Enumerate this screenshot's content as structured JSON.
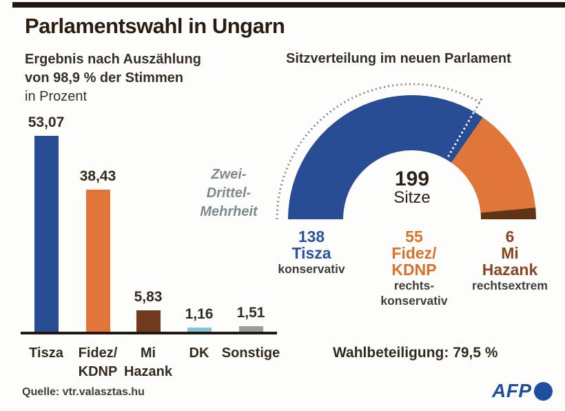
{
  "header": {
    "title": "Parlamentswahl in Ungarn"
  },
  "colors": {
    "tisza_blue": "#294d94",
    "fidez_orange": "#e0763a",
    "mi_hazank_brown_bar": "#6f3a1d",
    "mi_hazank_brown_donut": "#5f3316",
    "dk_lightblue": "#85c2dc",
    "sonstige_gray": "#9d9d99",
    "axis_black": "#231712",
    "annotation_gray": "#7e898d",
    "afp_blue": "#1e4f9c",
    "tisza_text": "#2c51a2",
    "fidez_text": "#d9702c",
    "mi_hazank_text": "#8b4520"
  },
  "chart_data": [
    {
      "type": "bar",
      "title_lines": [
        "Ergebnis nach Auszählung",
        "von 98,9 % der Stimmen",
        "in Prozent"
      ],
      "categories": [
        "Tisza",
        "Fidez/ KDNP",
        "Mi Hazank",
        "DK",
        "Sonstige"
      ],
      "category_lines": [
        [
          "Tisza"
        ],
        [
          "Fidez/",
          "KDNP"
        ],
        [
          "Mi",
          "Hazank"
        ],
        [
          "DK"
        ],
        [
          "Sonstige"
        ]
      ],
      "values": [
        53.07,
        38.43,
        5.83,
        1.16,
        1.51
      ],
      "value_labels": [
        "53,07",
        "38,43",
        "5,83",
        "1,16",
        "1,51"
      ],
      "bar_colors": [
        "#294d94",
        "#e0763a",
        "#6f3a1d",
        "#85c2dc",
        "#9d9d99"
      ],
      "ylabel": "Prozent",
      "ylim": [
        0,
        55
      ],
      "grid": false
    },
    {
      "type": "pie",
      "variant": "half-donut",
      "title": "Sitzverteilung im neuen Parlament",
      "center_label": {
        "value": "199",
        "unit": "Sitze"
      },
      "total_seats": 199,
      "segments": [
        {
          "name": "Tisza",
          "name_lines": [
            "Tisza"
          ],
          "seats": 138,
          "color": "#294d94",
          "label_color": "#2c51a2",
          "descriptor_lines": [
            "konservativ"
          ]
        },
        {
          "name": "Fidez/ KDNP",
          "name_lines": [
            "Fidez/",
            "KDNP"
          ],
          "seats": 55,
          "color": "#e0763a",
          "label_color": "#d9702c",
          "descriptor_lines": [
            "rechts-",
            "konservativ"
          ]
        },
        {
          "name": "Mi Hazank",
          "name_lines": [
            "Mi",
            "Hazank"
          ],
          "seats": 6,
          "color": "#5f3316",
          "label_color": "#8b4520",
          "descriptor_lines": [
            "rechtsextrem"
          ]
        }
      ],
      "annotation": {
        "label_lines": [
          "Zwei-",
          "Drittel-",
          "Mehrheit"
        ],
        "threshold_fraction": 0.66667
      },
      "legend_position": "below"
    }
  ],
  "turnout": {
    "label": "Wahlbeteiligung: 79,5 %"
  },
  "source": {
    "label": "Quelle: vtr.valasztas.hu"
  },
  "logo": {
    "text": "AFP"
  }
}
